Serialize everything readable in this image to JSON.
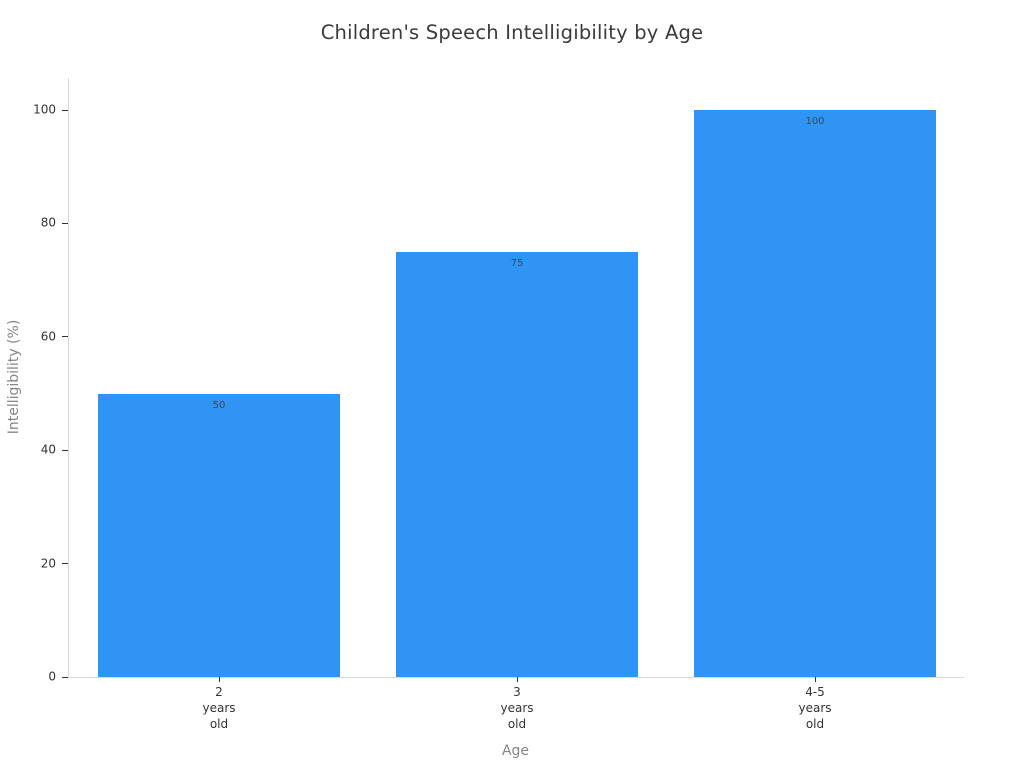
{
  "chart_data": {
    "type": "bar",
    "title": "Children's Speech Intelligibility by Age",
    "xlabel": "Age",
    "ylabel": "Intelligibility (%)",
    "categories": [
      "2 years old",
      "3 years old",
      "4-5 years old"
    ],
    "tick_labels": [
      "2\nyears\nold",
      "3\nyears\nold",
      "4-5\nyears\nold"
    ],
    "values": [
      50,
      75,
      100
    ],
    "bar_labels": [
      "50",
      "75",
      "100"
    ],
    "ylim": [
      0,
      100
    ],
    "yticks": [
      0,
      20,
      40,
      60,
      80,
      100
    ],
    "grid": false,
    "legend": "none",
    "bar_label_position": "inside-top",
    "colors": {
      "background": "#ffffff",
      "bar": "#2f94f4",
      "bar_label": "#3d4852",
      "title": "#3b3b3b",
      "tick": "#333333",
      "spine": "#d9d9d9",
      "axis_title": "#858585"
    }
  }
}
